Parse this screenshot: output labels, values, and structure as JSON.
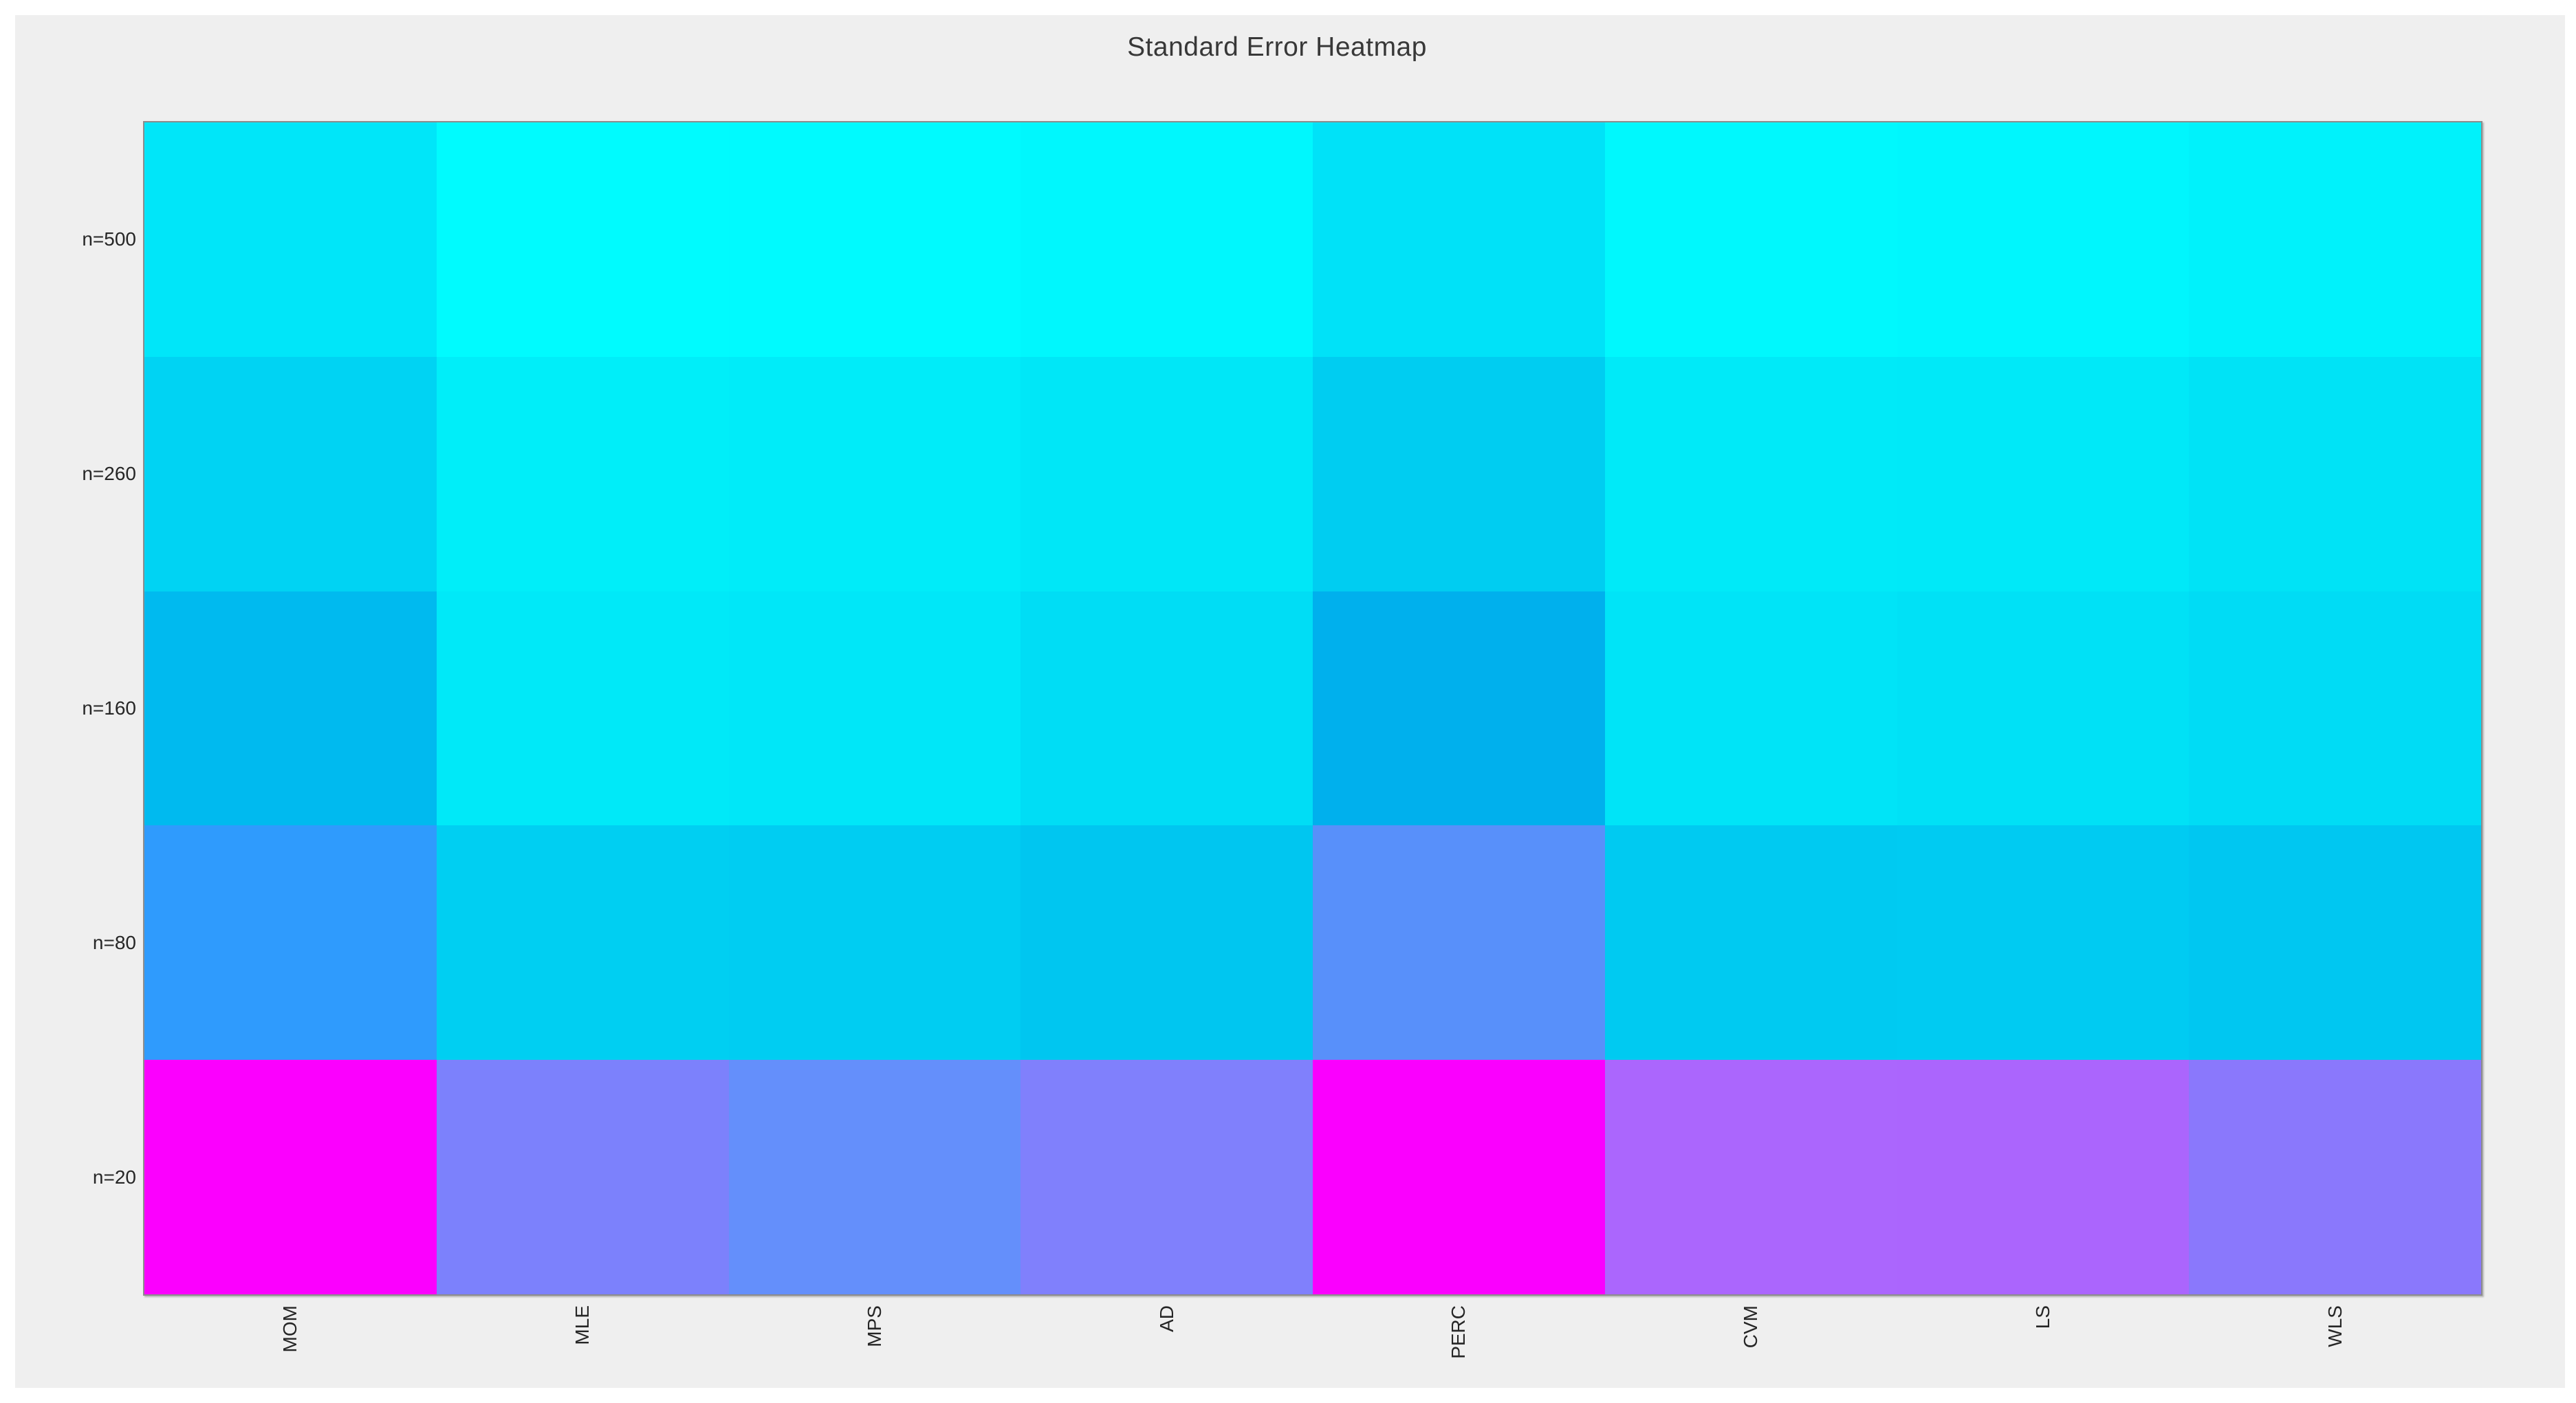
{
  "figure": {
    "page_background": "#FFFFFF",
    "canvas_background": "#EFEFEF",
    "axes_border_color": "#8C8C8C",
    "tick_label_color": "#262626",
    "title_color": "#383838"
  },
  "chart_data": {
    "type": "heatmap",
    "title": "Standard Error Heatmap",
    "x_labels": [
      "MOM",
      "MLE",
      "MPS",
      "AD",
      "PERC",
      "CVM",
      "LS",
      "WLS"
    ],
    "x_label_rotation_deg": 90,
    "y_labels": [
      "n=500",
      "n=260",
      "n=160",
      "n=80",
      "n=20"
    ],
    "colormap": "cool (cyan = low, magenta = high)",
    "colorbar_shown": false,
    "cell_value_text_shown": false,
    "cell_colors": [
      [
        "#00E6F9",
        "#00FBFE",
        "#00FAFE",
        "#00F7FD",
        "#00E2F8",
        "#00F8FD",
        "#00F6FD",
        "#00F2FB"
      ],
      [
        "#00D3F3",
        "#00EEF9",
        "#00ECF9",
        "#00E7F7",
        "#00CDF1",
        "#00EAF8",
        "#00E9F8",
        "#00E3F6"
      ],
      [
        "#00BAEF",
        "#00E9F8",
        "#00E7F8",
        "#00DDF5",
        "#00B0ED",
        "#00E4F7",
        "#00E1F6",
        "#00DCF5"
      ],
      [
        "#2F9BFD",
        "#00CFF2",
        "#00CDF2",
        "#00C6F0",
        "#5890FA",
        "#00CAF1",
        "#00CBF2",
        "#00C7F1"
      ],
      [
        "#FB00FE",
        "#7C81FC",
        "#648FFB",
        "#8080FC",
        "#FA00FE",
        "#AB66FD",
        "#AB65FD",
        "#8A78FC"
      ]
    ],
    "values_norm_estimated": [
      [
        0.08,
        0.01,
        0.02,
        0.03,
        0.1,
        0.02,
        0.03,
        0.05
      ],
      [
        0.16,
        0.06,
        0.07,
        0.09,
        0.19,
        0.08,
        0.08,
        0.11
      ],
      [
        0.26,
        0.08,
        0.09,
        0.13,
        0.31,
        0.1,
        0.11,
        0.13
      ],
      [
        0.4,
        0.18,
        0.19,
        0.22,
        0.48,
        0.2,
        0.2,
        0.22
      ],
      [
        1.0,
        0.5,
        0.41,
        0.5,
        1.0,
        0.65,
        0.65,
        0.53
      ]
    ],
    "legend_position": "none",
    "grid_lines": false
  }
}
